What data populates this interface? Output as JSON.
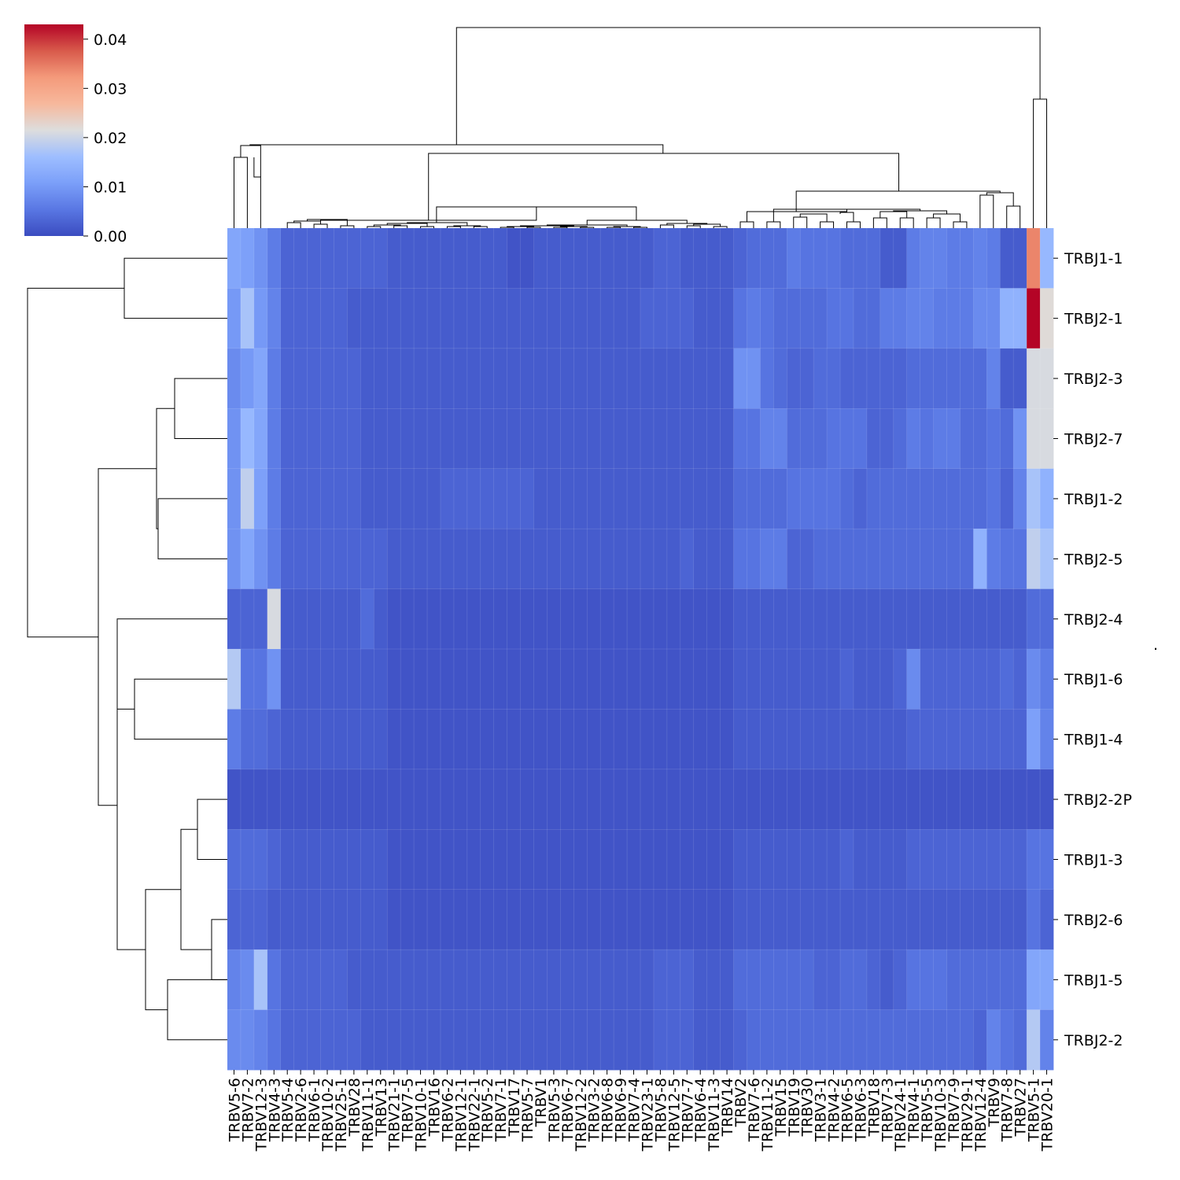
{
  "chart_data": {
    "type": "heatmap",
    "columns": [
      "TRBV5-6",
      "TRBV7-2",
      "TRBV12-3",
      "TRBV4-3",
      "TRBV5-4",
      "TRBV2-6",
      "TRBV6-1",
      "TRBV10-2",
      "TRBV25-1",
      "TRBV28",
      "TRBV11-1",
      "TRBV13",
      "TRBV21-1",
      "TRBV7-5",
      "TRBV10-1",
      "TRBV16",
      "TRBV6-2",
      "TRBV12-1",
      "TRBV22-1",
      "TRBV5-2",
      "TRBV7-1",
      "TRBV17",
      "TRBV5-7",
      "TRBV1",
      "TRBV5-3",
      "TRBV6-7",
      "TRBV12-2",
      "TRBV3-2",
      "TRBV6-8",
      "TRBV6-9",
      "TRBV7-4",
      "TRBV23-1",
      "TRBV5-8",
      "TRBV12-5",
      "TRBV7-7",
      "TRBV6-4",
      "TRBV11-3",
      "TRBV14",
      "TRBV2",
      "TRBV7-6",
      "TRBV11-2",
      "TRBV15",
      "TRBV19",
      "TRBV30",
      "TRBV3-1",
      "TRBV4-2",
      "TRBV6-5",
      "TRBV6-3",
      "TRBV18",
      "TRBV7-3",
      "TRBV24-1",
      "TRBV4-1",
      "TRBV5-5",
      "TRBV10-3",
      "TRBV7-9",
      "TRBV29-1",
      "TRBV12-4",
      "TRBV9",
      "TRBV7-8",
      "TRBV27",
      "TRBV5-1",
      "TRBV20-1"
    ],
    "rows": [
      "TRBJ1-1",
      "TRBJ2-1",
      "TRBJ2-3",
      "TRBJ2-7",
      "TRBJ1-2",
      "TRBJ2-5",
      "TRBJ2-4",
      "TRBJ1-6",
      "TRBJ1-4",
      "TRBJ2-2P",
      "TRBJ1-3",
      "TRBJ2-6",
      "TRBJ1-5",
      "TRBJ2-2"
    ],
    "values": [
      [
        0.012,
        0.011,
        0.009,
        0.006,
        0.003,
        0.003,
        0.003,
        0.003,
        0.003,
        0.003,
        0.003,
        0.003,
        0.002,
        0.002,
        0.002,
        0.002,
        0.002,
        0.002,
        0.002,
        0.002,
        0.002,
        0.001,
        0.001,
        0.002,
        0.002,
        0.002,
        0.002,
        0.002,
        0.002,
        0.002,
        0.002,
        0.002,
        0.003,
        0.003,
        0.002,
        0.002,
        0.002,
        0.002,
        0.003,
        0.004,
        0.004,
        0.004,
        0.006,
        0.005,
        0.005,
        0.005,
        0.004,
        0.004,
        0.004,
        0.002,
        0.002,
        0.006,
        0.007,
        0.007,
        0.006,
        0.006,
        0.007,
        0.006,
        0.002,
        0.002,
        0.034,
        0.015
      ],
      [
        0.01,
        0.017,
        0.01,
        0.007,
        0.003,
        0.003,
        0.003,
        0.003,
        0.003,
        0.002,
        0.002,
        0.002,
        0.002,
        0.002,
        0.002,
        0.002,
        0.002,
        0.002,
        0.002,
        0.002,
        0.002,
        0.002,
        0.002,
        0.002,
        0.002,
        0.002,
        0.002,
        0.002,
        0.002,
        0.002,
        0.002,
        0.003,
        0.003,
        0.003,
        0.003,
        0.002,
        0.002,
        0.002,
        0.005,
        0.006,
        0.005,
        0.004,
        0.004,
        0.004,
        0.004,
        0.005,
        0.005,
        0.004,
        0.004,
        0.006,
        0.006,
        0.007,
        0.007,
        0.006,
        0.006,
        0.006,
        0.008,
        0.008,
        0.014,
        0.014,
        0.043,
        0.022
      ],
      [
        0.008,
        0.01,
        0.012,
        0.006,
        0.003,
        0.003,
        0.003,
        0.003,
        0.003,
        0.003,
        0.002,
        0.002,
        0.002,
        0.002,
        0.002,
        0.002,
        0.002,
        0.002,
        0.002,
        0.002,
        0.002,
        0.002,
        0.002,
        0.002,
        0.002,
        0.002,
        0.002,
        0.002,
        0.002,
        0.002,
        0.002,
        0.002,
        0.002,
        0.002,
        0.002,
        0.002,
        0.002,
        0.002,
        0.009,
        0.009,
        0.005,
        0.004,
        0.003,
        0.003,
        0.004,
        0.004,
        0.003,
        0.003,
        0.003,
        0.003,
        0.003,
        0.004,
        0.004,
        0.004,
        0.004,
        0.004,
        0.004,
        0.007,
        0.002,
        0.002,
        0.021,
        0.021
      ],
      [
        0.009,
        0.015,
        0.012,
        0.006,
        0.003,
        0.003,
        0.003,
        0.003,
        0.003,
        0.003,
        0.002,
        0.002,
        0.002,
        0.002,
        0.002,
        0.002,
        0.002,
        0.002,
        0.002,
        0.002,
        0.002,
        0.002,
        0.002,
        0.002,
        0.002,
        0.002,
        0.002,
        0.002,
        0.002,
        0.002,
        0.002,
        0.002,
        0.002,
        0.002,
        0.002,
        0.002,
        0.002,
        0.002,
        0.005,
        0.005,
        0.007,
        0.007,
        0.004,
        0.004,
        0.004,
        0.005,
        0.005,
        0.005,
        0.003,
        0.003,
        0.004,
        0.006,
        0.005,
        0.006,
        0.006,
        0.004,
        0.004,
        0.005,
        0.004,
        0.009,
        0.021,
        0.021
      ],
      [
        0.009,
        0.019,
        0.011,
        0.006,
        0.003,
        0.003,
        0.003,
        0.003,
        0.003,
        0.003,
        0.002,
        0.002,
        0.002,
        0.002,
        0.002,
        0.002,
        0.003,
        0.003,
        0.003,
        0.003,
        0.003,
        0.003,
        0.003,
        0.002,
        0.002,
        0.002,
        0.002,
        0.002,
        0.002,
        0.002,
        0.002,
        0.002,
        0.002,
        0.002,
        0.002,
        0.002,
        0.002,
        0.002,
        0.004,
        0.004,
        0.004,
        0.004,
        0.005,
        0.005,
        0.005,
        0.005,
        0.004,
        0.003,
        0.004,
        0.004,
        0.004,
        0.004,
        0.004,
        0.004,
        0.004,
        0.004,
        0.004,
        0.005,
        0.003,
        0.007,
        0.017,
        0.014
      ],
      [
        0.009,
        0.012,
        0.009,
        0.006,
        0.003,
        0.003,
        0.003,
        0.003,
        0.003,
        0.003,
        0.003,
        0.003,
        0.002,
        0.002,
        0.002,
        0.002,
        0.002,
        0.002,
        0.002,
        0.002,
        0.002,
        0.002,
        0.002,
        0.002,
        0.002,
        0.002,
        0.002,
        0.002,
        0.002,
        0.002,
        0.002,
        0.002,
        0.002,
        0.002,
        0.003,
        0.002,
        0.002,
        0.002,
        0.005,
        0.005,
        0.006,
        0.006,
        0.003,
        0.003,
        0.004,
        0.004,
        0.004,
        0.004,
        0.004,
        0.004,
        0.004,
        0.004,
        0.004,
        0.004,
        0.004,
        0.004,
        0.014,
        0.006,
        0.005,
        0.005,
        0.019,
        0.017
      ],
      [
        0.003,
        0.003,
        0.003,
        0.021,
        0.002,
        0.002,
        0.002,
        0.002,
        0.002,
        0.002,
        0.004,
        0.002,
        0.001,
        0.001,
        0.001,
        0.001,
        0.001,
        0.001,
        0.001,
        0.001,
        0.001,
        0.001,
        0.001,
        0.001,
        0.001,
        0.001,
        0.001,
        0.001,
        0.001,
        0.001,
        0.001,
        0.001,
        0.001,
        0.001,
        0.001,
        0.001,
        0.001,
        0.001,
        0.002,
        0.002,
        0.002,
        0.002,
        0.002,
        0.002,
        0.002,
        0.002,
        0.002,
        0.002,
        0.002,
        0.002,
        0.002,
        0.002,
        0.002,
        0.002,
        0.002,
        0.002,
        0.002,
        0.002,
        0.002,
        0.002,
        0.004,
        0.004
      ],
      [
        0.018,
        0.005,
        0.005,
        0.009,
        0.002,
        0.002,
        0.002,
        0.002,
        0.002,
        0.002,
        0.002,
        0.002,
        0.001,
        0.001,
        0.001,
        0.001,
        0.001,
        0.001,
        0.001,
        0.001,
        0.001,
        0.001,
        0.001,
        0.001,
        0.001,
        0.001,
        0.001,
        0.001,
        0.001,
        0.001,
        0.001,
        0.001,
        0.001,
        0.001,
        0.001,
        0.001,
        0.001,
        0.001,
        0.002,
        0.002,
        0.002,
        0.002,
        0.002,
        0.002,
        0.002,
        0.002,
        0.003,
        0.002,
        0.002,
        0.002,
        0.003,
        0.008,
        0.003,
        0.003,
        0.003,
        0.003,
        0.003,
        0.003,
        0.004,
        0.003,
        0.008,
        0.006
      ],
      [
        0.006,
        0.004,
        0.004,
        0.003,
        0.002,
        0.002,
        0.002,
        0.002,
        0.002,
        0.002,
        0.002,
        0.002,
        0.001,
        0.001,
        0.001,
        0.001,
        0.001,
        0.001,
        0.001,
        0.001,
        0.001,
        0.001,
        0.001,
        0.001,
        0.001,
        0.001,
        0.001,
        0.001,
        0.001,
        0.001,
        0.001,
        0.001,
        0.001,
        0.001,
        0.001,
        0.001,
        0.001,
        0.001,
        0.002,
        0.002,
        0.002,
        0.002,
        0.002,
        0.002,
        0.002,
        0.002,
        0.002,
        0.002,
        0.002,
        0.002,
        0.002,
        0.003,
        0.003,
        0.003,
        0.003,
        0.003,
        0.003,
        0.003,
        0.003,
        0.003,
        0.011,
        0.007
      ],
      [
        0.001,
        0.001,
        0.001,
        0.001,
        0.001,
        0.001,
        0.001,
        0.001,
        0.001,
        0.001,
        0.001,
        0.001,
        0.001,
        0.001,
        0.001,
        0.001,
        0.001,
        0.001,
        0.001,
        0.001,
        0.001,
        0.001,
        0.001,
        0.001,
        0.001,
        0.001,
        0.001,
        0.001,
        0.001,
        0.001,
        0.001,
        0.001,
        0.001,
        0.001,
        0.001,
        0.001,
        0.001,
        0.001,
        0.001,
        0.001,
        0.001,
        0.001,
        0.001,
        0.001,
        0.001,
        0.001,
        0.001,
        0.001,
        0.001,
        0.001,
        0.001,
        0.001,
        0.001,
        0.001,
        0.001,
        0.001,
        0.001,
        0.001,
        0.001,
        0.001,
        0.001,
        0.001
      ],
      [
        0.004,
        0.004,
        0.004,
        0.003,
        0.002,
        0.002,
        0.002,
        0.002,
        0.002,
        0.002,
        0.002,
        0.002,
        0.001,
        0.001,
        0.001,
        0.001,
        0.001,
        0.001,
        0.001,
        0.001,
        0.001,
        0.001,
        0.001,
        0.001,
        0.001,
        0.001,
        0.001,
        0.001,
        0.001,
        0.001,
        0.001,
        0.001,
        0.001,
        0.001,
        0.001,
        0.001,
        0.001,
        0.001,
        0.002,
        0.002,
        0.002,
        0.002,
        0.002,
        0.002,
        0.002,
        0.002,
        0.003,
        0.002,
        0.002,
        0.002,
        0.002,
        0.003,
        0.003,
        0.003,
        0.003,
        0.003,
        0.003,
        0.003,
        0.003,
        0.003,
        0.005,
        0.005
      ],
      [
        0.003,
        0.003,
        0.003,
        0.002,
        0.002,
        0.002,
        0.002,
        0.002,
        0.002,
        0.002,
        0.002,
        0.002,
        0.001,
        0.001,
        0.001,
        0.001,
        0.001,
        0.001,
        0.001,
        0.001,
        0.001,
        0.001,
        0.001,
        0.001,
        0.001,
        0.001,
        0.001,
        0.001,
        0.001,
        0.001,
        0.001,
        0.001,
        0.001,
        0.001,
        0.001,
        0.001,
        0.001,
        0.001,
        0.002,
        0.002,
        0.002,
        0.002,
        0.002,
        0.002,
        0.002,
        0.002,
        0.002,
        0.002,
        0.002,
        0.002,
        0.002,
        0.002,
        0.002,
        0.002,
        0.002,
        0.002,
        0.002,
        0.002,
        0.002,
        0.002,
        0.005,
        0.003
      ],
      [
        0.007,
        0.008,
        0.017,
        0.005,
        0.003,
        0.003,
        0.003,
        0.003,
        0.003,
        0.002,
        0.002,
        0.002,
        0.002,
        0.002,
        0.002,
        0.002,
        0.002,
        0.002,
        0.002,
        0.002,
        0.002,
        0.002,
        0.002,
        0.002,
        0.002,
        0.002,
        0.002,
        0.002,
        0.002,
        0.002,
        0.002,
        0.002,
        0.003,
        0.003,
        0.003,
        0.002,
        0.002,
        0.002,
        0.004,
        0.004,
        0.004,
        0.004,
        0.004,
        0.004,
        0.003,
        0.003,
        0.004,
        0.004,
        0.003,
        0.002,
        0.003,
        0.005,
        0.005,
        0.005,
        0.004,
        0.004,
        0.004,
        0.004,
        0.004,
        0.004,
        0.012,
        0.012
      ],
      [
        0.008,
        0.008,
        0.007,
        0.005,
        0.003,
        0.003,
        0.003,
        0.003,
        0.003,
        0.003,
        0.002,
        0.002,
        0.002,
        0.002,
        0.002,
        0.002,
        0.002,
        0.002,
        0.002,
        0.002,
        0.002,
        0.002,
        0.002,
        0.002,
        0.002,
        0.002,
        0.002,
        0.002,
        0.002,
        0.002,
        0.002,
        0.002,
        0.003,
        0.003,
        0.003,
        0.002,
        0.002,
        0.002,
        0.003,
        0.004,
        0.004,
        0.004,
        0.004,
        0.004,
        0.004,
        0.004,
        0.004,
        0.004,
        0.004,
        0.004,
        0.004,
        0.004,
        0.004,
        0.004,
        0.004,
        0.004,
        0.003,
        0.007,
        0.005,
        0.004,
        0.018,
        0.007
      ]
    ],
    "colorbar": {
      "colormap": "coolwarm",
      "min": 0.0,
      "max": 0.043,
      "ticks": [
        "0.00",
        "0.01",
        "0.02",
        "0.03",
        "0.04"
      ]
    },
    "stray_mark": "."
  }
}
